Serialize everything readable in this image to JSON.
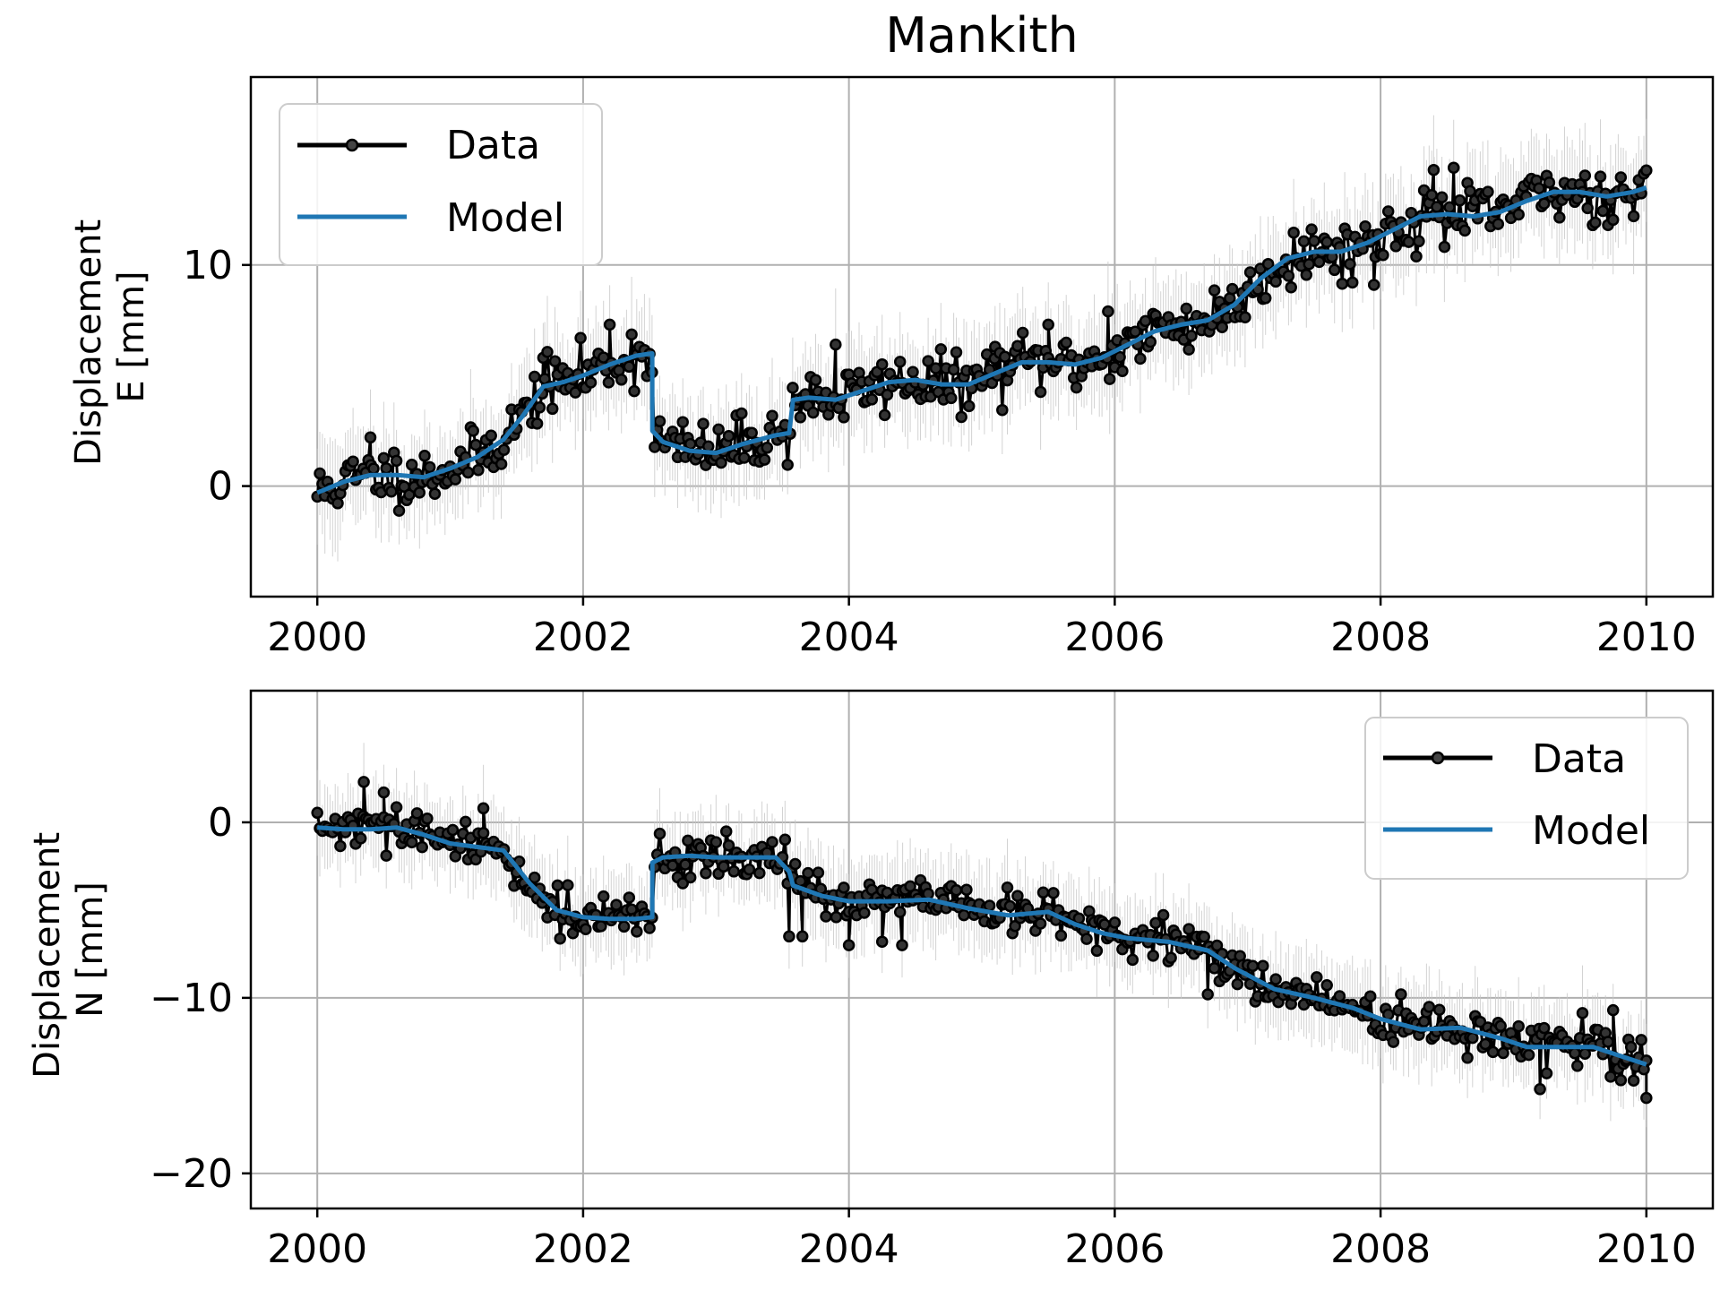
{
  "figure": {
    "title": "Mankith",
    "colors": {
      "data": "#000000",
      "error_bars": "#c8c8c8",
      "model": "#1f77b4",
      "grid": "#b0b0b0",
      "axes": "#000000",
      "legend_border": "#cccccc"
    }
  },
  "chart_data": [
    {
      "type": "line",
      "panel": "top",
      "ylabel": "Displacement\nE [mm]",
      "ylabel_lines": [
        "Displacement",
        "E [mm]"
      ],
      "xlim": [
        1999.5,
        2010.5
      ],
      "ylim": [
        -5,
        18.5
      ],
      "xticks": [
        2000,
        2002,
        2004,
        2006,
        2008,
        2010
      ],
      "yticks": [
        0,
        10
      ],
      "grid": true,
      "legend": {
        "placement": "top-left",
        "entries": [
          "Data",
          "Model"
        ]
      },
      "series": [
        {
          "name": "Data",
          "style": "line-with-markers",
          "noise_std": 0.85,
          "error_bar_halfwidth": 2.2,
          "outliers": [
            [
              2000.4,
              2.2
            ],
            [
              2001.7,
              5.8
            ],
            [
              2002.2,
              7.3
            ],
            [
              2003.9,
              6.4
            ],
            [
              2005.1,
              6.3
            ],
            [
              2005.5,
              7.3
            ],
            [
              2005.95,
              7.9
            ],
            [
              2008.4,
              14.3
            ],
            [
              2008.55,
              14.4
            ],
            [
              2007.95,
              9.1
            ]
          ]
        },
        {
          "name": "Model",
          "style": "line",
          "x": [
            2000.0,
            2000.2,
            2000.4,
            2000.6,
            2000.8,
            2001.0,
            2001.2,
            2001.4,
            2001.55,
            2001.7,
            2001.85,
            2002.0,
            2002.2,
            2002.4,
            2002.52,
            2002.521,
            2002.6,
            2002.8,
            2003.0,
            2003.2,
            2003.45,
            2003.55,
            2003.58,
            2003.7,
            2003.9,
            2004.1,
            2004.3,
            2004.5,
            2004.7,
            2004.9,
            2005.1,
            2005.3,
            2005.5,
            2005.7,
            2005.9,
            2006.1,
            2006.3,
            2006.5,
            2006.7,
            2006.9,
            2007.1,
            2007.3,
            2007.5,
            2007.7,
            2007.9,
            2008.1,
            2008.3,
            2008.5,
            2008.7,
            2008.9,
            2009.1,
            2009.3,
            2009.5,
            2009.7,
            2009.9,
            2010.0
          ],
          "y": [
            -0.3,
            0.2,
            0.5,
            0.5,
            0.4,
            0.8,
            1.3,
            2.1,
            3.2,
            4.5,
            4.7,
            5.0,
            5.5,
            5.9,
            6.0,
            2.5,
            2.0,
            1.6,
            1.5,
            1.9,
            2.3,
            2.4,
            3.9,
            4.0,
            3.9,
            4.3,
            4.7,
            4.8,
            4.6,
            4.6,
            5.1,
            5.6,
            5.6,
            5.5,
            5.8,
            6.4,
            7.0,
            7.3,
            7.5,
            8.2,
            9.4,
            10.3,
            10.6,
            10.6,
            11.0,
            11.6,
            12.2,
            12.3,
            12.2,
            12.4,
            12.9,
            13.3,
            13.3,
            13.1,
            13.3,
            13.5
          ]
        }
      ]
    },
    {
      "type": "line",
      "panel": "bottom",
      "ylabel": "Displacement\nN [mm]",
      "ylabel_lines": [
        "Displacement",
        "N [mm]"
      ],
      "xlim": [
        1999.5,
        2010.5
      ],
      "ylim": [
        -22,
        7.5
      ],
      "xticks": [
        2000,
        2002,
        2004,
        2006,
        2008,
        2010
      ],
      "yticks": [
        0,
        -10,
        -20
      ],
      "grid": true,
      "legend": {
        "placement": "top-right",
        "entries": [
          "Data",
          "Model"
        ]
      },
      "series": [
        {
          "name": "Data",
          "style": "line-with-markers",
          "noise_std": 0.8,
          "error_bar_halfwidth": 2.4,
          "outliers": [
            [
              2000.35,
              2.3
            ],
            [
              2000.5,
              1.7
            ],
            [
              2001.25,
              0.8
            ],
            [
              2003.55,
              -6.5
            ],
            [
              2003.65,
              -6.5
            ],
            [
              2004.0,
              -7.0
            ],
            [
              2004.25,
              -6.8
            ],
            [
              2004.4,
              -7.0
            ],
            [
              2006.7,
              -9.8
            ],
            [
              2009.75,
              -10.7
            ],
            [
              2009.85,
              -13.5
            ],
            [
              2010.0,
              -15.7
            ],
            [
              2009.2,
              -15.2
            ]
          ]
        },
        {
          "name": "Model",
          "style": "line",
          "x": [
            2000.0,
            2000.2,
            2000.4,
            2000.6,
            2000.8,
            2001.0,
            2001.2,
            2001.4,
            2001.6,
            2001.8,
            2002.0,
            2002.2,
            2002.4,
            2002.52,
            2002.521,
            2002.6,
            2002.8,
            2003.0,
            2003.2,
            2003.45,
            2003.55,
            2003.58,
            2003.8,
            2004.0,
            2004.3,
            2004.6,
            2004.9,
            2005.2,
            2005.5,
            2005.7,
            2005.9,
            2006.1,
            2006.4,
            2006.7,
            2006.9,
            2007.2,
            2007.5,
            2007.8,
            2008.0,
            2008.3,
            2008.6,
            2008.9,
            2009.1,
            2009.4,
            2009.6,
            2009.8,
            2010.0
          ],
          "y": [
            -0.3,
            -0.4,
            -0.4,
            -0.3,
            -0.7,
            -1.2,
            -1.4,
            -1.6,
            -3.5,
            -5.0,
            -5.4,
            -5.5,
            -5.5,
            -5.4,
            -2.3,
            -2.0,
            -1.9,
            -2.0,
            -2.0,
            -2.0,
            -2.8,
            -3.6,
            -4.2,
            -4.5,
            -4.5,
            -4.4,
            -4.9,
            -5.3,
            -5.1,
            -5.8,
            -6.3,
            -6.6,
            -6.8,
            -7.3,
            -8.3,
            -9.5,
            -10.0,
            -10.6,
            -11.2,
            -11.8,
            -11.7,
            -12.3,
            -12.8,
            -12.8,
            -12.8,
            -13.3,
            -13.8
          ]
        }
      ]
    }
  ]
}
